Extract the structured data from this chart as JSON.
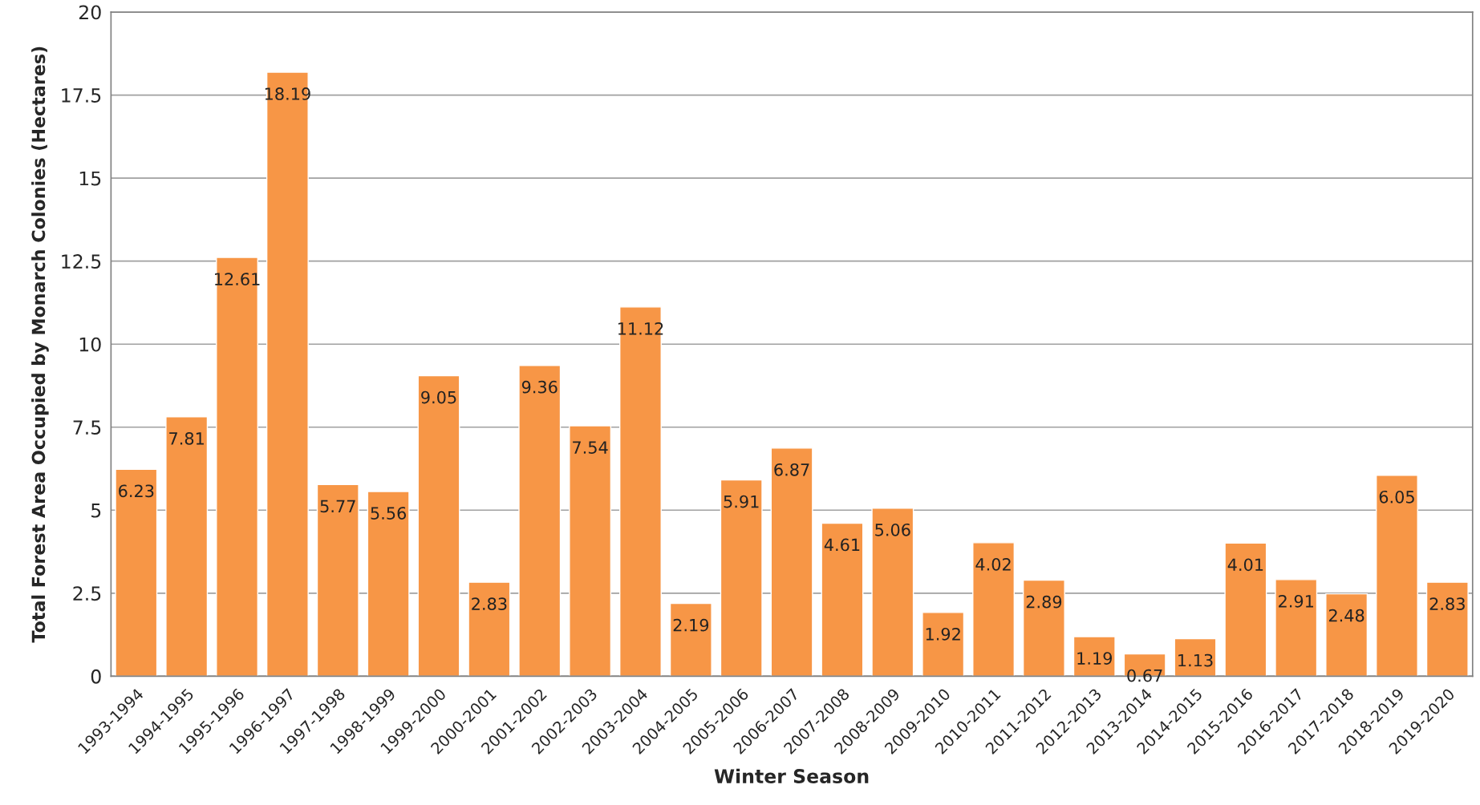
{
  "chart_data": {
    "type": "bar",
    "categories": [
      "1993-1994",
      "1994-1995",
      "1995-1996",
      "1996-1997",
      "1997-1998",
      "1998-1999",
      "1999-2000",
      "2000-2001",
      "2001-2002",
      "2002-2003",
      "2003-2004",
      "2004-2005",
      "2005-2006",
      "2006-2007",
      "2007-2008",
      "2008-2009",
      "2009-2010",
      "2010-2011",
      "2011-2012",
      "2012-2013",
      "2013-2014",
      "2014-2015",
      "2015-2016",
      "2016-2017",
      "2017-2018",
      "2018-2019",
      "2019-2020"
    ],
    "values": [
      6.23,
      7.81,
      12.61,
      18.19,
      5.77,
      5.56,
      9.05,
      2.83,
      9.36,
      7.54,
      11.12,
      2.19,
      5.91,
      6.87,
      4.61,
      5.06,
      1.92,
      4.02,
      2.89,
      1.19,
      0.67,
      1.13,
      4.01,
      2.91,
      2.48,
      6.05,
      2.83
    ],
    "color": "#f79646",
    "xlabel": "Winter Season",
    "ylabel": "Total Forest Area Occupied by Monarch Colonies (Hectares)",
    "ylim": [
      0,
      20
    ],
    "yticks": [
      0,
      2.5,
      5,
      7.5,
      10,
      12.5,
      15,
      17.5,
      20
    ],
    "grid": "y",
    "data_labels": true
  }
}
